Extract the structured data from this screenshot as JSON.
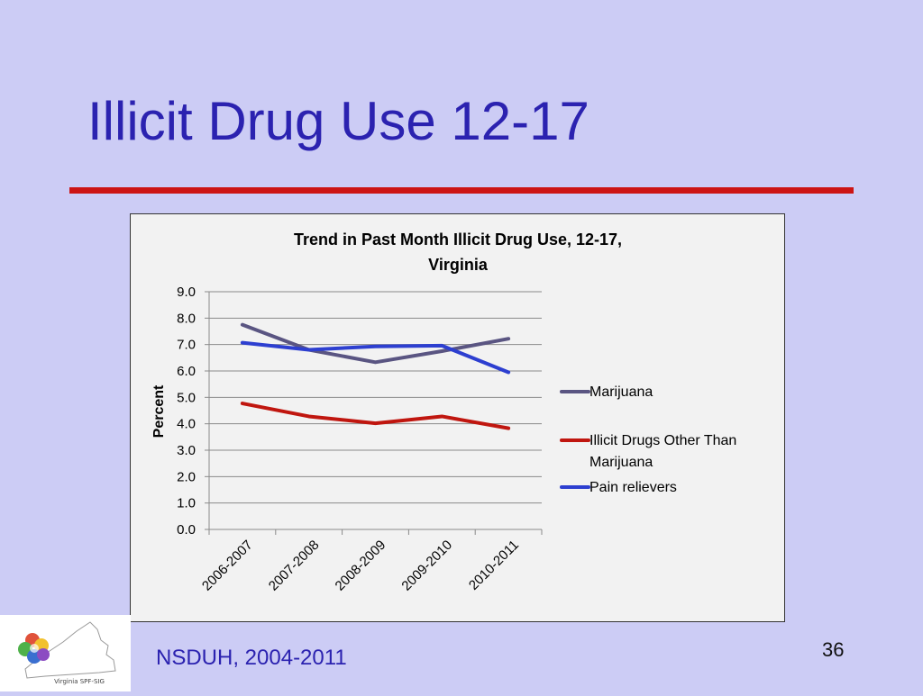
{
  "slide": {
    "title": "Illicit Drug Use 12-17",
    "source": "NSDUH, 2004-2011",
    "page_number": "36",
    "logo_text": "Virginia SPF-SIG"
  },
  "colors": {
    "title": "#2b22b0",
    "rule": "#cc1414",
    "background": "#ccccf5",
    "chart_background": "#f2f2f2"
  },
  "chart_data": {
    "type": "line",
    "title": "Trend in Past Month Illicit Drug Use, 12-17,",
    "subtitle": "Virginia",
    "xlabel": "",
    "ylabel": "Percent",
    "ylim": [
      0,
      9
    ],
    "yticks": [
      "0.0",
      "1.0",
      "2.0",
      "3.0",
      "4.0",
      "5.0",
      "6.0",
      "7.0",
      "8.0",
      "9.0"
    ],
    "grid": true,
    "legend_position": "right",
    "categories": [
      "2006-2007",
      "2007-2008",
      "2008-2009",
      "2009-2010",
      "2010-2011"
    ],
    "series": [
      {
        "name": "Marijuana",
        "color": "#5a5582",
        "values": [
          7.75,
          6.8,
          6.33,
          6.75,
          7.22
        ]
      },
      {
        "name": "Illicit Drugs Other Than Marijuana",
        "color": "#c0160f",
        "values": [
          4.77,
          4.28,
          4.02,
          4.28,
          3.83
        ]
      },
      {
        "name": "Pain relievers",
        "color": "#2d3fd0",
        "values": [
          7.07,
          6.8,
          6.93,
          6.96,
          5.95
        ]
      }
    ]
  }
}
